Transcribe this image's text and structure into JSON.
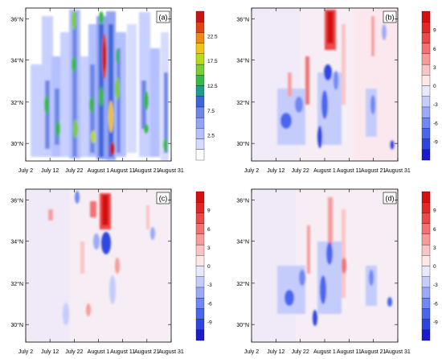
{
  "figure": {
    "panel_labels": [
      "(a)",
      "(b)",
      "(c)",
      "(d)"
    ],
    "lat_ticks": [
      "36°N",
      "34°N",
      "32°N",
      "30°N"
    ],
    "time_ticks": [
      "July 2",
      "July 12",
      "July 22",
      "August 1",
      "August 11",
      "August 21",
      "August 31"
    ]
  },
  "colorbars": {
    "a": {
      "labels": [
        "22.5",
        "17.5",
        "12.5",
        "7.5",
        "2.5"
      ],
      "colors": [
        "#ffffff",
        "#d6dcff",
        "#b4c0ff",
        "#93a4f5",
        "#6f86e8",
        "#3f66d9",
        "#1f9c8e",
        "#36b84a",
        "#7ccd36",
        "#b9d91e",
        "#f0c519",
        "#f08a16",
        "#e04515",
        "#c81414"
      ]
    },
    "diff": {
      "labels": [
        "9",
        "6",
        "3",
        "0",
        "-3",
        "-6",
        "-9"
      ],
      "colors": [
        "#1c1ccf",
        "#2e46e0",
        "#4a66ee",
        "#6f88f5",
        "#9aaaf8",
        "#c4ccfb",
        "#e7eafd",
        "#fde7e7",
        "#fbc4c4",
        "#f79c9c",
        "#f27272",
        "#ec4a4a",
        "#e32626",
        "#d60f0f"
      ]
    }
  },
  "chart_data": [
    {
      "panel": "(a)",
      "type": "heatmap",
      "x": "time (July 2 – August 31)",
      "y": "latitude (≈29.5°N – 36.5°N)",
      "colorbar_range": [
        0,
        25
      ],
      "description_of_values": "precipitation bands; maxima ~25 near August 1 at 31–36°N"
    },
    {
      "panel": "(b)",
      "type": "heatmap",
      "colorbar_range": [
        -10,
        10
      ],
      "features": "positive maximum ~10 near August 1 at 35–36°N; negatives to about -9 near 31–32°N in late July"
    },
    {
      "panel": "(c)",
      "type": "heatmap",
      "colorbar_range": [
        -10,
        10
      ],
      "features": "positive maximum ~10 near August 1 at 35–36°N; negative ~ -9 near 33–34°N"
    },
    {
      "panel": "(d)",
      "type": "heatmap",
      "colorbar_range": [
        -10,
        10
      ],
      "features": "mixed positive/negative streaks; negatives near 31–32°N late July"
    }
  ]
}
